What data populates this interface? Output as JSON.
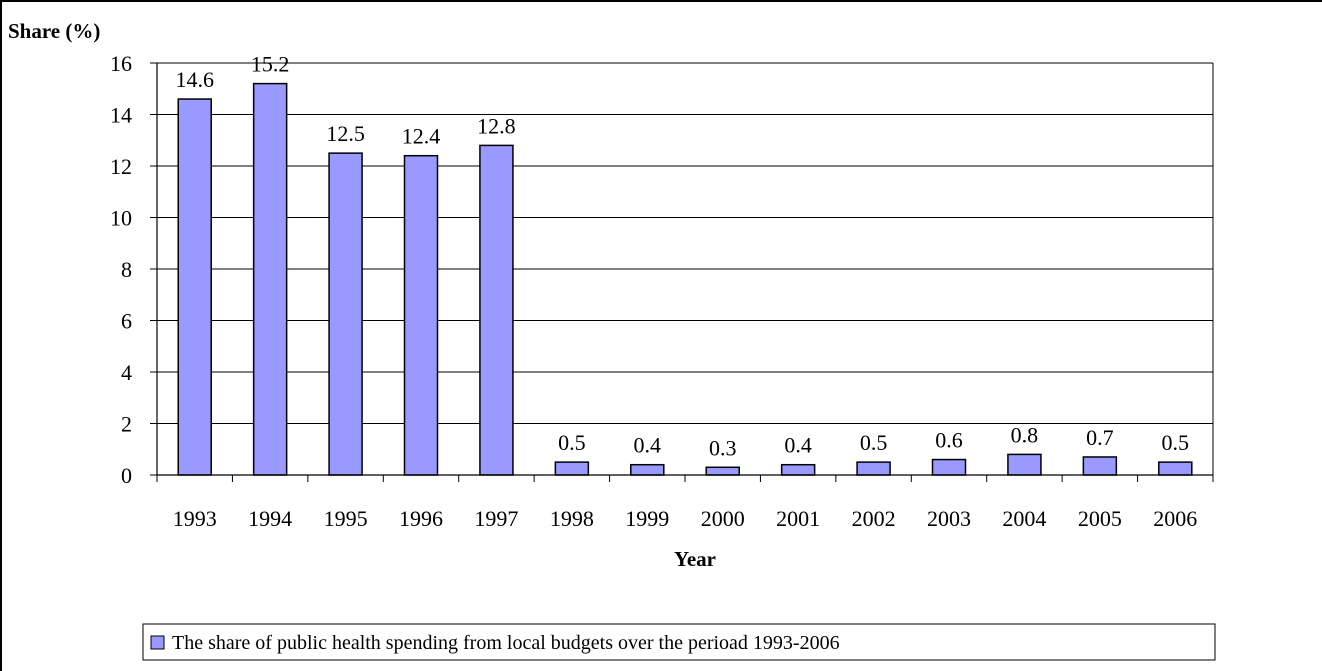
{
  "chart_data": {
    "type": "bar",
    "ylabel": "Share (%)",
    "xlabel": "Year",
    "categories": [
      "1993",
      "1994",
      "1995",
      "1996",
      "1997",
      "1998",
      "1999",
      "2000",
      "2001",
      "2002",
      "2003",
      "2004",
      "2005",
      "2006"
    ],
    "series": [
      {
        "name": "The share of public health spending from local budgets over the perioad 1993-2006",
        "values": [
          14.6,
          15.2,
          12.5,
          12.4,
          12.8,
          0.5,
          0.4,
          0.3,
          0.4,
          0.5,
          0.6,
          0.8,
          0.7,
          0.5
        ],
        "labels": [
          "14.6",
          "15.2",
          "12.5",
          "12.4",
          "12.8",
          "0.5",
          "0.4",
          "0.3",
          "0.4",
          "0.5",
          "0.6",
          "0.8",
          "0.7",
          "0.5"
        ]
      }
    ],
    "ylim": [
      0,
      16
    ],
    "yticks": [
      0,
      2,
      4,
      6,
      8,
      10,
      12,
      14,
      16
    ],
    "grid": true,
    "legend_position": "bottom",
    "colors": {
      "bar_fill": "#9999ff",
      "bar_stroke": "#000000",
      "grid": "#000000"
    }
  }
}
